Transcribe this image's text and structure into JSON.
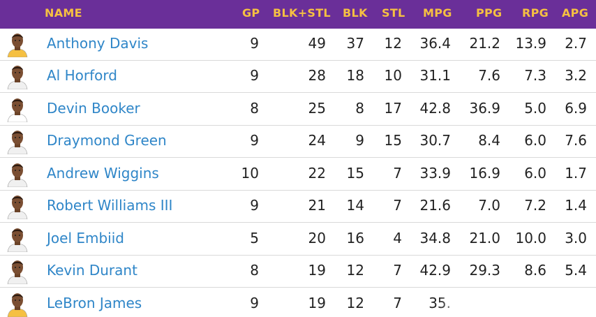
{
  "columns": [
    "NAME",
    "GP",
    "BLK+STL",
    "BLK",
    "STL",
    "MPG",
    "PPG",
    "RPG",
    "APG"
  ],
  "colors": {
    "header_bg": "#6a2f99",
    "header_text": "#f5c042",
    "name_link": "#2f86c8"
  },
  "rows": [
    {
      "name": "Anthony Davis",
      "gp": "9",
      "blk_stl": "49",
      "blk": "37",
      "stl": "12",
      "mpg": "36.4",
      "ppg": "21.2",
      "rpg": "13.9",
      "apg": "2.7",
      "jersey": "#f5c042"
    },
    {
      "name": "Al Horford",
      "gp": "9",
      "blk_stl": "28",
      "blk": "18",
      "stl": "10",
      "mpg": "31.1",
      "ppg": "7.6",
      "rpg": "7.3",
      "apg": "3.2",
      "jersey": "#f0f0f0"
    },
    {
      "name": "Devin Booker",
      "gp": "8",
      "blk_stl": "25",
      "blk": "8",
      "stl": "17",
      "mpg": "42.8",
      "ppg": "36.9",
      "rpg": "5.0",
      "apg": "6.9",
      "jersey": "#ffffff"
    },
    {
      "name": "Draymond Green",
      "gp": "9",
      "blk_stl": "24",
      "blk": "9",
      "stl": "15",
      "mpg": "30.7",
      "ppg": "8.4",
      "rpg": "6.0",
      "apg": "7.6",
      "jersey": "#f0f0f0"
    },
    {
      "name": "Andrew Wiggins",
      "gp": "10",
      "blk_stl": "22",
      "blk": "15",
      "stl": "7",
      "mpg": "33.9",
      "ppg": "16.9",
      "rpg": "6.0",
      "apg": "1.7",
      "jersey": "#f0f0f0"
    },
    {
      "name": "Robert Williams III",
      "gp": "9",
      "blk_stl": "21",
      "blk": "14",
      "stl": "7",
      "mpg": "21.6",
      "ppg": "7.0",
      "rpg": "7.2",
      "apg": "1.4",
      "jersey": "#f0f0f0"
    },
    {
      "name": "Joel Embiid",
      "gp": "5",
      "blk_stl": "20",
      "blk": "16",
      "stl": "4",
      "mpg": "34.8",
      "ppg": "21.0",
      "rpg": "10.0",
      "apg": "3.0",
      "jersey": "#f0f0f0"
    },
    {
      "name": "Kevin Durant",
      "gp": "8",
      "blk_stl": "19",
      "blk": "12",
      "stl": "7",
      "mpg": "42.9",
      "ppg": "29.3",
      "rpg": "8.6",
      "apg": "5.4",
      "jersey": "#f0f0f0"
    },
    {
      "name": "LeBron James",
      "gp": "9",
      "blk_stl": "19",
      "blk": "12",
      "stl": "7",
      "mpg": "35.",
      "ppg": "",
      "rpg": "",
      "apg": "",
      "jersey": "#f5c042"
    }
  ]
}
